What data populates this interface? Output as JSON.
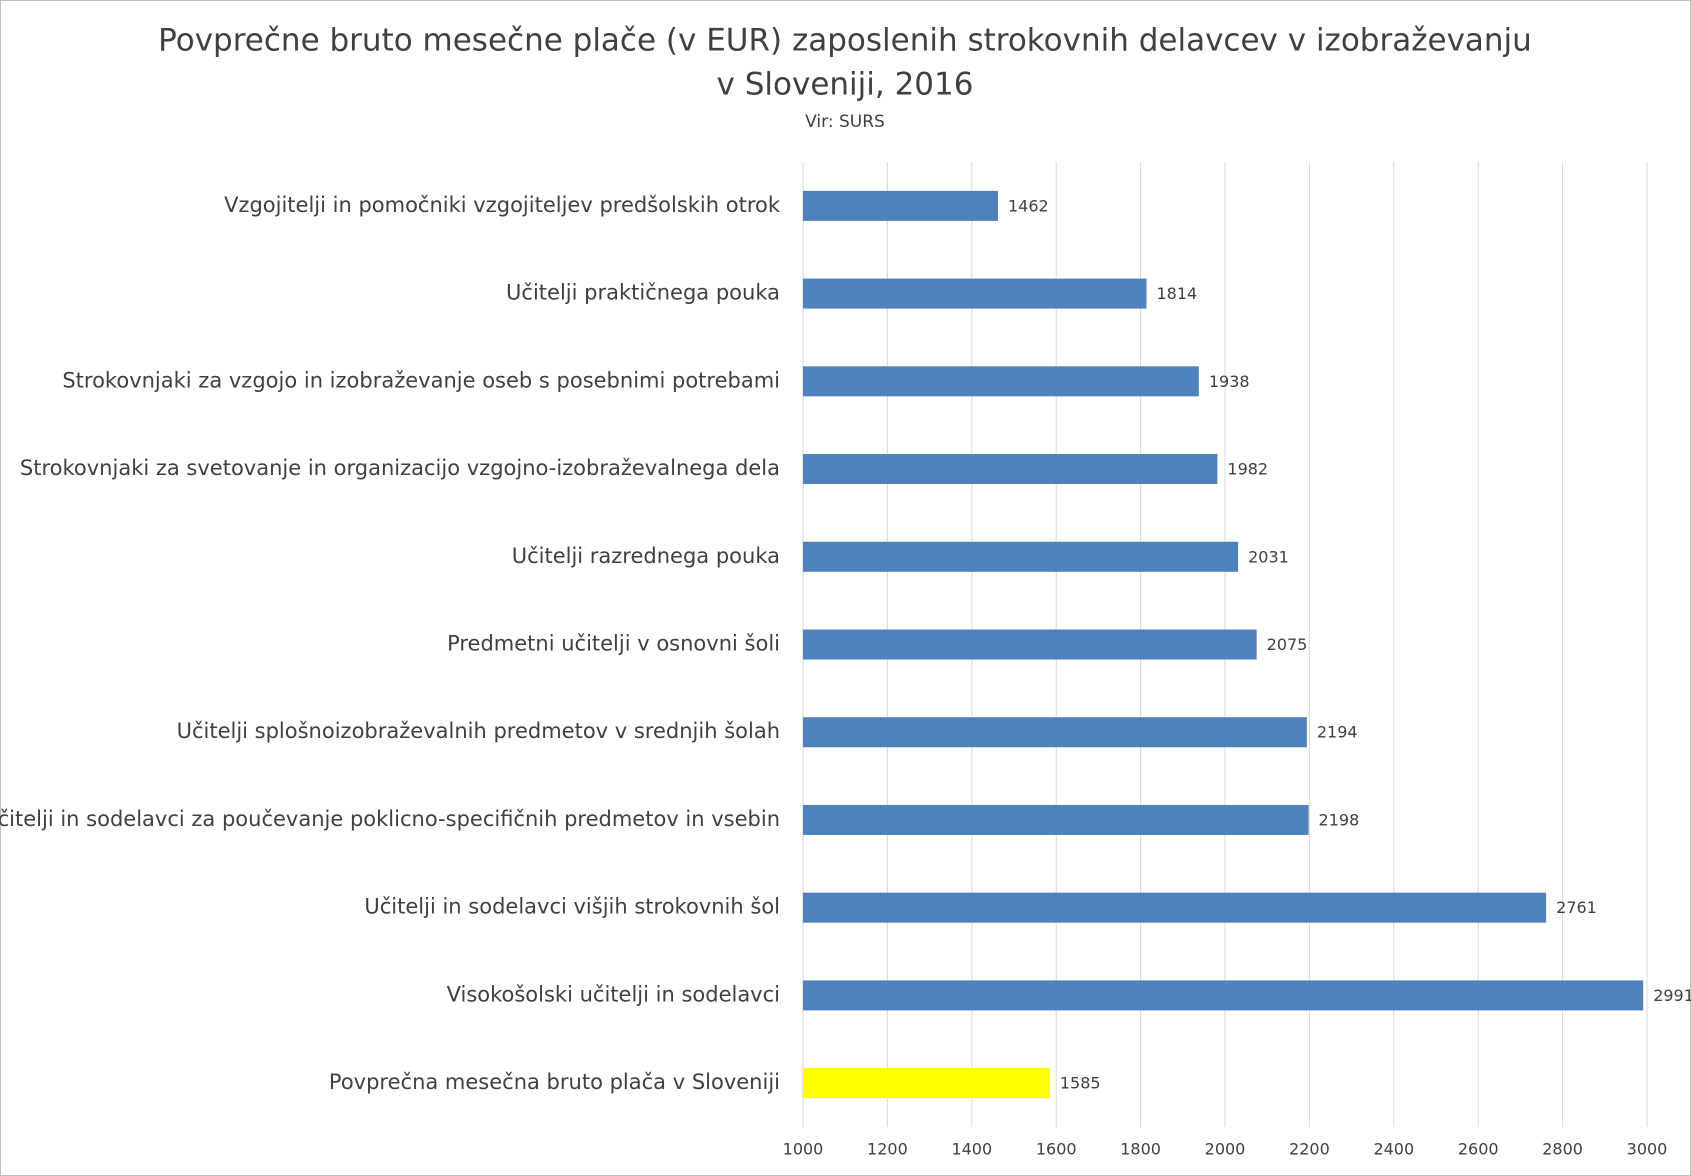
{
  "chart_data": {
    "type": "bar",
    "orientation": "horizontal",
    "title": [
      "Povprečne bruto mesečne plače (v EUR) zaposlenih strokovnih delavcev v izobraževanju",
      "v Sloveniji, 2016"
    ],
    "subtitle": "Vir: SURS",
    "categories": [
      "Vzgojitelji in pomočniki vzgojiteljev predšolskih otrok",
      "Učitelji praktičnega pouka",
      "Strokovnjaki za vzgojo in izobraževanje oseb s posebnimi potrebami",
      "Strokovnjaki za svetovanje in organizacijo vzgojno-izobraževalnega dela",
      "Učitelji razrednega pouka",
      "Predmetni učitelji v osnovni šoli",
      "Učitelji splošnoizobraževalnih predmetov v srednjih šolah",
      "Učitelji in sodelavci za poučevanje poklicno-specifičnih predmetov in vsebin",
      "Učitelji in sodelavci višjih strokovnih šol",
      "Visokošolski učitelji in sodelavci",
      "Povprečna mesečna bruto plača v Sloveniji"
    ],
    "values": [
      1462,
      1814,
      1938,
      1982,
      2031,
      2075,
      2194,
      2198,
      2761,
      2991,
      1585
    ],
    "colors": [
      "#4f81bd",
      "#4f81bd",
      "#4f81bd",
      "#4f81bd",
      "#4f81bd",
      "#4f81bd",
      "#4f81bd",
      "#4f81bd",
      "#4f81bd",
      "#4f81bd",
      "#ffff00"
    ],
    "xlim": [
      1000,
      3000
    ],
    "xticks": [
      1000,
      1200,
      1400,
      1600,
      1800,
      2000,
      2200,
      2400,
      2600,
      2800,
      3000
    ],
    "grid": true
  }
}
